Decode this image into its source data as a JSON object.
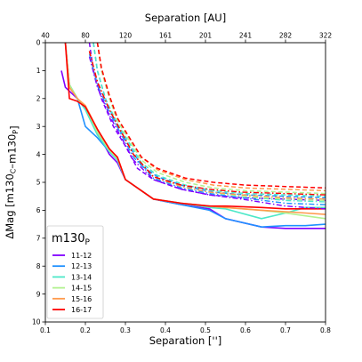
{
  "chart_data": {
    "type": "line",
    "xlabel": "Separation ['']",
    "xlabel_top": "Separation [AU]",
    "ylabel": "ΔMag [m130C–m130P]",
    "xlim": [
      0.1,
      0.8
    ],
    "ylim": [
      10,
      0
    ],
    "x_ticks": [
      "0.1",
      "0.2",
      "0.3",
      "0.4",
      "0.5",
      "0.6",
      "0.7",
      "0.8"
    ],
    "x_tick_values": [
      0.1,
      0.2,
      0.3,
      0.4,
      0.5,
      0.6,
      0.7,
      0.8
    ],
    "y_ticks": [
      "0",
      "1",
      "2",
      "3",
      "4",
      "5",
      "6",
      "7",
      "8",
      "9",
      "10"
    ],
    "y_tick_values": [
      0,
      1,
      2,
      3,
      4,
      5,
      6,
      7,
      8,
      9,
      10
    ],
    "top_ticks": [
      "40",
      "80",
      "120",
      "161",
      "201",
      "241",
      "282",
      "322"
    ],
    "top_tick_values": [
      0.1,
      0.2,
      0.3,
      0.4,
      0.5,
      0.6,
      0.7,
      0.8
    ],
    "legend": {
      "title": "m130P",
      "placement": "lower-left",
      "entries": [
        "11-12",
        "12-13",
        "13-14",
        "14-15",
        "15-16",
        "16-17"
      ]
    },
    "colors": [
      "#8000ff",
      "#1e90ff",
      "#4de8c8",
      "#b2f28f",
      "#ff9a4d",
      "#ff0000"
    ],
    "series": [
      {
        "name": "11-12",
        "color": "#8000ff",
        "solid_x": [
          0.14,
          0.15,
          0.18,
          0.2,
          0.23,
          0.26,
          0.28,
          0.3,
          0.37,
          0.44,
          0.51,
          0.55,
          0.64,
          0.7,
          0.75,
          0.8
        ],
        "solid_y": [
          1.0,
          1.6,
          2.0,
          2.3,
          3.2,
          4.0,
          4.3,
          4.9,
          5.6,
          5.8,
          5.95,
          6.3,
          6.6,
          6.65,
          6.65,
          6.65
        ],
        "dashed_x": [
          0.21,
          0.22,
          0.24,
          0.27,
          0.3,
          0.33,
          0.37,
          0.44,
          0.51,
          0.59,
          0.7,
          0.8
        ],
        "dashed_y": [
          0.0,
          1.0,
          2.0,
          3.0,
          3.7,
          4.5,
          4.9,
          5.25,
          5.45,
          5.55,
          5.6,
          5.65
        ],
        "dashdot_x": [
          0.21,
          0.23,
          0.26,
          0.29,
          0.32,
          0.37,
          0.44,
          0.51,
          0.59,
          0.7,
          0.8
        ],
        "dashdot_y": [
          0.5,
          1.6,
          2.6,
          3.4,
          4.2,
          4.9,
          5.25,
          5.45,
          5.6,
          5.85,
          5.95
        ]
      },
      {
        "name": "12-13",
        "color": "#1e90ff",
        "solid_x": [
          0.15,
          0.16,
          0.18,
          0.2,
          0.23,
          0.26,
          0.28,
          0.3,
          0.37,
          0.44,
          0.51,
          0.55,
          0.64,
          0.7,
          0.75,
          0.8
        ],
        "solid_y": [
          0.0,
          1.5,
          2.0,
          3.0,
          3.4,
          3.9,
          4.2,
          4.9,
          5.6,
          5.8,
          6.0,
          6.3,
          6.6,
          6.55,
          6.55,
          6.5
        ],
        "dashed_x": [
          0.22,
          0.23,
          0.25,
          0.28,
          0.31,
          0.34,
          0.38,
          0.45,
          0.52,
          0.6,
          0.7,
          0.8
        ],
        "dashed_y": [
          0.0,
          1.0,
          2.0,
          3.0,
          3.7,
          4.4,
          4.8,
          5.15,
          5.35,
          5.45,
          5.5,
          5.55
        ],
        "dashdot_x": [
          0.21,
          0.23,
          0.26,
          0.29,
          0.32,
          0.37,
          0.44,
          0.51,
          0.59,
          0.7,
          0.8
        ],
        "dashdot_y": [
          0.4,
          1.5,
          2.5,
          3.3,
          4.1,
          4.85,
          5.2,
          5.4,
          5.55,
          5.75,
          5.8
        ]
      },
      {
        "name": "13-14",
        "color": "#4de8c8",
        "solid_x": [
          0.15,
          0.16,
          0.18,
          0.2,
          0.23,
          0.26,
          0.28,
          0.3,
          0.37,
          0.44,
          0.51,
          0.55,
          0.64,
          0.7,
          0.75,
          0.8
        ],
        "solid_y": [
          0.0,
          1.5,
          2.0,
          2.4,
          3.3,
          3.9,
          4.2,
          4.9,
          5.6,
          5.75,
          5.9,
          5.95,
          6.3,
          6.1,
          5.9,
          5.9
        ],
        "dashed_x": [
          0.22,
          0.23,
          0.25,
          0.28,
          0.31,
          0.34,
          0.38,
          0.45,
          0.52,
          0.6,
          0.7,
          0.8
        ],
        "dashed_y": [
          0.0,
          1.0,
          2.0,
          2.9,
          3.6,
          4.3,
          4.75,
          5.1,
          5.3,
          5.4,
          5.45,
          5.5
        ],
        "dashdot_x": [
          0.21,
          0.23,
          0.26,
          0.29,
          0.32,
          0.37,
          0.44,
          0.51,
          0.59,
          0.7,
          0.8
        ],
        "dashdot_y": [
          0.3,
          1.4,
          2.4,
          3.2,
          4.0,
          4.8,
          5.15,
          5.35,
          5.5,
          5.65,
          5.7
        ]
      },
      {
        "name": "14-15",
        "color": "#b2f28f",
        "solid_x": [
          0.15,
          0.16,
          0.18,
          0.2,
          0.23,
          0.26,
          0.28,
          0.3,
          0.37,
          0.44,
          0.51,
          0.55,
          0.64,
          0.7,
          0.75,
          0.8
        ],
        "solid_y": [
          0.0,
          1.5,
          2.0,
          2.3,
          3.2,
          3.85,
          4.15,
          4.9,
          5.6,
          5.75,
          5.85,
          5.9,
          6.0,
          6.1,
          6.2,
          6.3
        ],
        "dashed_x": [
          0.23,
          0.24,
          0.26,
          0.28,
          0.31,
          0.34,
          0.38,
          0.45,
          0.52,
          0.6,
          0.7,
          0.8
        ],
        "dashed_y": [
          0.0,
          1.0,
          2.0,
          2.8,
          3.5,
          4.2,
          4.65,
          5.0,
          5.2,
          5.3,
          5.35,
          5.4
        ],
        "dashdot_x": [
          0.21,
          0.23,
          0.26,
          0.29,
          0.32,
          0.37,
          0.44,
          0.51,
          0.59,
          0.7,
          0.8
        ],
        "dashdot_y": [
          0.3,
          1.4,
          2.4,
          3.2,
          4.0,
          4.8,
          5.15,
          5.35,
          5.5,
          5.6,
          5.65
        ]
      },
      {
        "name": "15-16",
        "color": "#ff9a4d",
        "solid_x": [
          0.15,
          0.16,
          0.18,
          0.2,
          0.23,
          0.26,
          0.28,
          0.3,
          0.37,
          0.44,
          0.51,
          0.55,
          0.64,
          0.7,
          0.75,
          0.8
        ],
        "solid_y": [
          0.0,
          1.6,
          2.0,
          2.25,
          3.1,
          3.8,
          4.1,
          4.9,
          5.6,
          5.75,
          5.85,
          5.9,
          6.0,
          6.05,
          6.1,
          6.15
        ],
        "dashed_x": [
          0.23,
          0.24,
          0.26,
          0.28,
          0.31,
          0.34,
          0.38,
          0.45,
          0.52,
          0.6,
          0.7,
          0.8
        ],
        "dashed_y": [
          0.0,
          0.9,
          1.9,
          2.7,
          3.4,
          4.1,
          4.55,
          4.9,
          5.1,
          5.2,
          5.25,
          5.3
        ],
        "dashdot_x": [
          0.21,
          0.23,
          0.26,
          0.29,
          0.32,
          0.37,
          0.44,
          0.51,
          0.59,
          0.7,
          0.8
        ],
        "dashdot_y": [
          0.3,
          1.4,
          2.4,
          3.2,
          4.0,
          4.8,
          5.15,
          5.35,
          5.45,
          5.55,
          5.6
        ]
      },
      {
        "name": "16-17",
        "color": "#ff0000",
        "solid_x": [
          0.15,
          0.16,
          0.18,
          0.2,
          0.23,
          0.26,
          0.28,
          0.3,
          0.37,
          0.44,
          0.51,
          0.55,
          0.64,
          0.7,
          0.75,
          0.8
        ],
        "solid_y": [
          0.0,
          2.0,
          2.1,
          2.3,
          3.1,
          3.8,
          4.1,
          4.9,
          5.6,
          5.75,
          5.85,
          5.85,
          5.9,
          5.95,
          5.95,
          5.95
        ],
        "dashed_x": [
          0.23,
          0.24,
          0.26,
          0.28,
          0.31,
          0.34,
          0.38,
          0.45,
          0.52,
          0.6,
          0.7,
          0.8
        ],
        "dashed_y": [
          0.0,
          0.9,
          1.9,
          2.7,
          3.4,
          4.1,
          4.5,
          4.85,
          5.0,
          5.1,
          5.15,
          5.2
        ],
        "dashdot_x": [
          0.21,
          0.23,
          0.26,
          0.29,
          0.32,
          0.37,
          0.44,
          0.51,
          0.59,
          0.7,
          0.8
        ],
        "dashdot_y": [
          0.3,
          1.4,
          2.4,
          3.2,
          4.0,
          4.8,
          5.1,
          5.25,
          5.35,
          5.4,
          5.45
        ]
      }
    ]
  }
}
